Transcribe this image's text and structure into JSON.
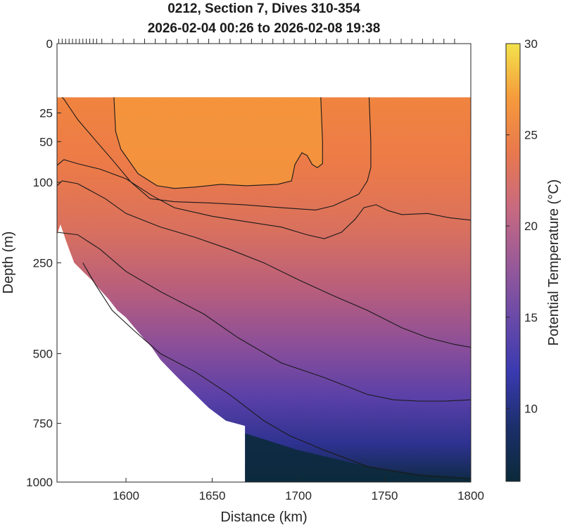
{
  "chart_data": {
    "type": "heatmap",
    "title": "0212, Section 7, Dives 310-354",
    "subtitle": "2026-02-04 00:26 to 2026-02-08 19:38",
    "xlabel": "Distance (km)",
    "ylabel": "Depth (m)",
    "xlim": [
      1560,
      1800
    ],
    "ylim": [
      0,
      1000
    ],
    "y_scale": "sqrt",
    "x_ticks": [
      1600,
      1650,
      1700,
      1750,
      1800
    ],
    "y_ticks": [
      0,
      25,
      50,
      100,
      250,
      500,
      750,
      1000
    ],
    "data_top_depth": 15,
    "colorbar": {
      "label": "Potential Temperature (°C)",
      "range": [
        6,
        30
      ],
      "ticks": [
        10,
        15,
        20,
        25,
        30
      ],
      "colormap": "thermal",
      "colors": [
        "#0b2a3a",
        "#1b2f6b",
        "#3a3ab0",
        "#6a4aa8",
        "#9a5a98",
        "#c86a80",
        "#e8784e",
        "#f59a3c",
        "#f3e24b"
      ]
    },
    "contour_levels": [
      10,
      12,
      16,
      18,
      20,
      22,
      24
    ],
    "contours": [
      {
        "level": 24,
        "points": [
          [
            1593,
            0
          ],
          [
            1594,
            40
          ],
          [
            1597,
            58
          ],
          [
            1607,
            88
          ],
          [
            1618,
            105
          ],
          [
            1628,
            109
          ],
          [
            1640,
            107
          ],
          [
            1655,
            103
          ],
          [
            1670,
            105
          ],
          [
            1688,
            103
          ],
          [
            1696,
            98
          ],
          [
            1698,
            76
          ],
          [
            1702,
            62
          ],
          [
            1705,
            65
          ],
          [
            1708,
            76
          ],
          [
            1711,
            80
          ],
          [
            1714,
            75
          ],
          [
            1714,
            50
          ],
          [
            1713,
            0
          ]
        ]
      },
      {
        "level": 22,
        "points": [
          [
            1563,
            0
          ],
          [
            1564,
            16
          ],
          [
            1572,
            30
          ],
          [
            1583,
            50
          ],
          [
            1592,
            70
          ],
          [
            1603,
            100
          ],
          [
            1614,
            125
          ],
          [
            1628,
            130
          ],
          [
            1648,
            132
          ],
          [
            1668,
            135
          ],
          [
            1690,
            140
          ],
          [
            1710,
            144
          ],
          [
            1720,
            137
          ],
          [
            1735,
            118
          ],
          [
            1740,
            98
          ],
          [
            1742,
            80
          ],
          [
            1742,
            50
          ],
          [
            1741,
            0
          ]
        ]
      },
      {
        "level": 20,
        "points": [
          [
            1560,
            77
          ],
          [
            1564,
            70
          ],
          [
            1572,
            75
          ],
          [
            1585,
            82
          ],
          [
            1600,
            95
          ],
          [
            1615,
            120
          ],
          [
            1628,
            140
          ],
          [
            1650,
            155
          ],
          [
            1670,
            165
          ],
          [
            1690,
            175
          ],
          [
            1705,
            190
          ],
          [
            1715,
            198
          ],
          [
            1725,
            185
          ],
          [
            1733,
            160
          ],
          [
            1738,
            140
          ],
          [
            1745,
            135
          ],
          [
            1752,
            145
          ],
          [
            1760,
            152
          ],
          [
            1775,
            150
          ],
          [
            1788,
            158
          ],
          [
            1800,
            162
          ]
        ]
      },
      {
        "level": 18,
        "points": [
          [
            1560,
            105
          ],
          [
            1563,
            98
          ],
          [
            1572,
            102
          ],
          [
            1588,
            125
          ],
          [
            1600,
            150
          ],
          [
            1620,
            175
          ],
          [
            1640,
            195
          ],
          [
            1660,
            220
          ],
          [
            1680,
            250
          ],
          [
            1700,
            290
          ],
          [
            1720,
            330
          ],
          [
            1740,
            370
          ],
          [
            1760,
            420
          ],
          [
            1775,
            450
          ],
          [
            1790,
            470
          ],
          [
            1800,
            480
          ]
        ]
      },
      {
        "level": 16,
        "points": [
          [
            1560,
            185
          ],
          [
            1572,
            190
          ],
          [
            1585,
            220
          ],
          [
            1600,
            270
          ],
          [
            1620,
            320
          ],
          [
            1645,
            380
          ],
          [
            1665,
            450
          ],
          [
            1690,
            530
          ],
          [
            1715,
            580
          ],
          [
            1740,
            640
          ],
          [
            1755,
            660
          ],
          [
            1770,
            665
          ],
          [
            1785,
            665
          ],
          [
            1800,
            660
          ]
        ]
      },
      {
        "level": 12,
        "points": [
          [
            1575,
            250
          ],
          [
            1582,
            300
          ],
          [
            1592,
            370
          ],
          [
            1605,
            430
          ],
          [
            1620,
            500
          ],
          [
            1640,
            560
          ],
          [
            1660,
            640
          ],
          [
            1680,
            740
          ],
          [
            1695,
            800
          ],
          [
            1715,
            860
          ],
          [
            1740,
            930
          ],
          [
            1770,
            970
          ],
          [
            1800,
            985
          ]
        ]
      }
    ]
  }
}
